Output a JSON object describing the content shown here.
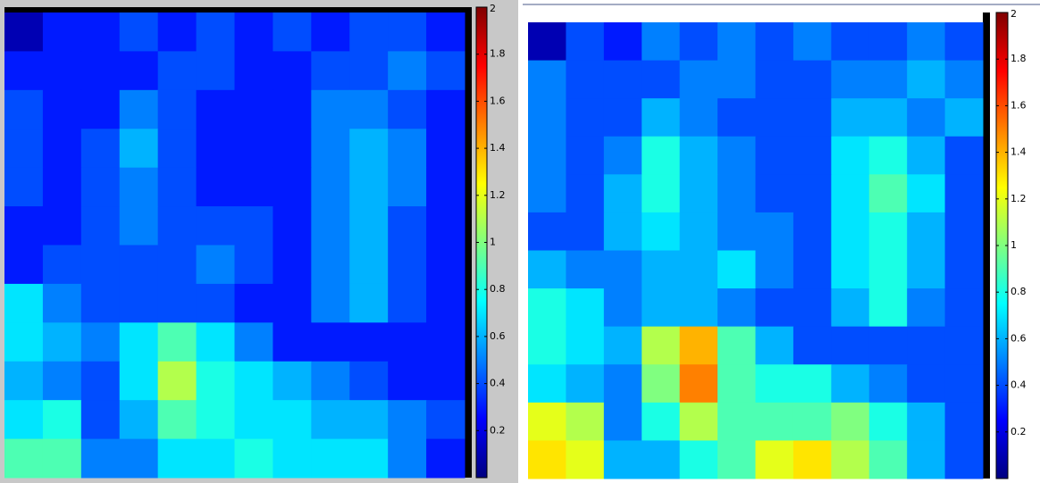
{
  "chart_data": [
    {
      "type": "heatmap",
      "zlim": [
        0,
        2
      ],
      "zticks": [
        0.2,
        0.4,
        0.6,
        0.8,
        1,
        1.2,
        1.4,
        1.6,
        1.8,
        2
      ],
      "z": [
        [
          0.1,
          0.3,
          0.3,
          0.4,
          0.3,
          0.4,
          0.3,
          0.4,
          0.3,
          0.4,
          0.4,
          0.3
        ],
        [
          0.3,
          0.3,
          0.3,
          0.3,
          0.4,
          0.4,
          0.3,
          0.3,
          0.4,
          0.4,
          0.5,
          0.4
        ],
        [
          0.4,
          0.3,
          0.3,
          0.5,
          0.4,
          0.3,
          0.3,
          0.3,
          0.5,
          0.5,
          0.4,
          0.3
        ],
        [
          0.4,
          0.3,
          0.4,
          0.6,
          0.4,
          0.3,
          0.3,
          0.3,
          0.5,
          0.6,
          0.5,
          0.3
        ],
        [
          0.4,
          0.3,
          0.4,
          0.5,
          0.4,
          0.3,
          0.3,
          0.3,
          0.5,
          0.6,
          0.5,
          0.3
        ],
        [
          0.3,
          0.3,
          0.4,
          0.5,
          0.4,
          0.4,
          0.4,
          0.3,
          0.5,
          0.6,
          0.4,
          0.3
        ],
        [
          0.3,
          0.4,
          0.4,
          0.4,
          0.4,
          0.5,
          0.4,
          0.3,
          0.5,
          0.6,
          0.4,
          0.3
        ],
        [
          0.7,
          0.5,
          0.4,
          0.4,
          0.4,
          0.4,
          0.3,
          0.3,
          0.5,
          0.6,
          0.4,
          0.3
        ],
        [
          0.7,
          0.6,
          0.5,
          0.7,
          0.9,
          0.7,
          0.5,
          0.3,
          0.3,
          0.3,
          0.3,
          0.3
        ],
        [
          0.6,
          0.5,
          0.4,
          0.7,
          1.1,
          0.8,
          0.7,
          0.6,
          0.5,
          0.4,
          0.3,
          0.3
        ],
        [
          0.7,
          0.8,
          0.4,
          0.6,
          0.9,
          0.8,
          0.7,
          0.7,
          0.6,
          0.6,
          0.5,
          0.4
        ],
        [
          0.9,
          0.9,
          0.5,
          0.5,
          0.7,
          0.7,
          0.8,
          0.7,
          0.7,
          0.7,
          0.5,
          0.3
        ]
      ]
    },
    {
      "type": "heatmap",
      "zlim": [
        0,
        2
      ],
      "zticks": [
        0.2,
        0.4,
        0.6,
        0.8,
        1,
        1.2,
        1.4,
        1.6,
        1.8,
        2
      ],
      "z": [
        [
          0.1,
          0.4,
          0.3,
          0.5,
          0.4,
          0.5,
          0.4,
          0.5,
          0.4,
          0.4,
          0.5,
          0.4
        ],
        [
          0.5,
          0.4,
          0.4,
          0.4,
          0.5,
          0.5,
          0.4,
          0.4,
          0.5,
          0.5,
          0.6,
          0.5
        ],
        [
          0.5,
          0.4,
          0.4,
          0.6,
          0.5,
          0.4,
          0.4,
          0.4,
          0.6,
          0.6,
          0.5,
          0.6
        ],
        [
          0.5,
          0.4,
          0.5,
          0.8,
          0.6,
          0.5,
          0.4,
          0.4,
          0.7,
          0.8,
          0.6,
          0.4
        ],
        [
          0.5,
          0.4,
          0.6,
          0.8,
          0.6,
          0.5,
          0.4,
          0.4,
          0.7,
          0.9,
          0.7,
          0.4
        ],
        [
          0.4,
          0.4,
          0.6,
          0.7,
          0.6,
          0.5,
          0.5,
          0.4,
          0.7,
          0.8,
          0.6,
          0.4
        ],
        [
          0.6,
          0.5,
          0.5,
          0.6,
          0.6,
          0.7,
          0.5,
          0.4,
          0.7,
          0.8,
          0.6,
          0.4
        ],
        [
          0.8,
          0.7,
          0.5,
          0.6,
          0.6,
          0.5,
          0.4,
          0.4,
          0.6,
          0.8,
          0.5,
          0.4
        ],
        [
          0.8,
          0.7,
          0.6,
          1.1,
          1.4,
          0.9,
          0.6,
          0.4,
          0.4,
          0.4,
          0.4,
          0.4
        ],
        [
          0.7,
          0.6,
          0.5,
          1.0,
          1.5,
          0.9,
          0.8,
          0.8,
          0.6,
          0.5,
          0.4,
          0.4
        ],
        [
          1.2,
          1.1,
          0.5,
          0.8,
          1.1,
          0.9,
          0.9,
          0.9,
          1.0,
          0.8,
          0.6,
          0.4
        ],
        [
          1.3,
          1.2,
          0.6,
          0.6,
          0.8,
          0.9,
          1.2,
          1.3,
          1.1,
          0.9,
          0.6,
          0.4
        ]
      ]
    }
  ]
}
